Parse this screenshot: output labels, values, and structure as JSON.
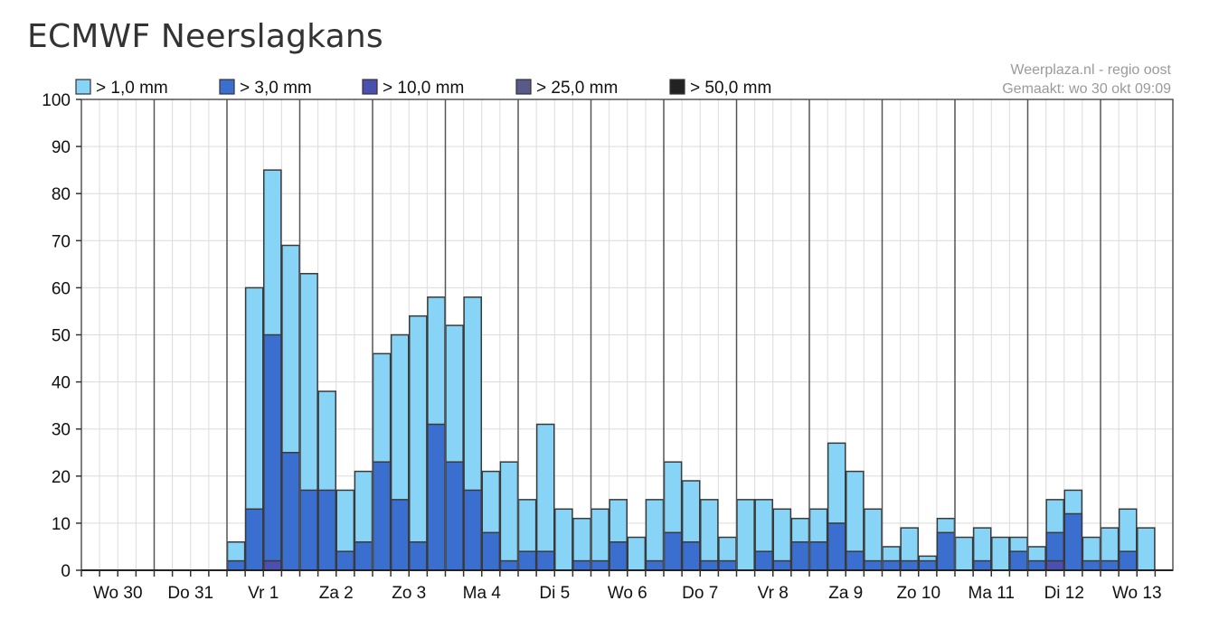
{
  "page": {
    "title": "ECMWF Neerslagkans"
  },
  "credit": {
    "source": "Weerplaza.nl - regio oost",
    "created": "Gemaakt: wo 30 okt 09:09"
  },
  "legend": [
    {
      "label": "> 1,0 mm",
      "color": "#87d4f7"
    },
    {
      "label": "> 3,0 mm",
      "color": "#3a6fd0"
    },
    {
      "label": "> 10,0 mm",
      "color": "#4a4fb0"
    },
    {
      "label": "> 25,0 mm",
      "color": "#5a5a8a"
    },
    {
      "label": "> 50,0 mm",
      "color": "#222222"
    }
  ],
  "chart_data": {
    "type": "bar",
    "stacked_overlay": true,
    "ylim": [
      0,
      100
    ],
    "yticks": [
      0,
      10,
      20,
      30,
      40,
      50,
      60,
      70,
      80,
      90,
      100
    ],
    "days": [
      "Wo 30",
      "Do 31",
      "Vr 1",
      "Za 2",
      "Zo 3",
      "Ma 4",
      "Di 5",
      "Wo 6",
      "Do 7",
      "Vr 8",
      "Za 9",
      "Zo 10",
      "Ma 11",
      "Di 12",
      "Wo 13"
    ],
    "grid": true,
    "legend_position": "top",
    "series": [
      {
        "name": "> 1,0 mm",
        "values": [
          0,
          0,
          0,
          0,
          0,
          0,
          0,
          0,
          6,
          60,
          85,
          69,
          63,
          38,
          17,
          21,
          46,
          50,
          54,
          58,
          52,
          58,
          21,
          23,
          15,
          31,
          13,
          11,
          13,
          15,
          7,
          15,
          23,
          19,
          15,
          7,
          15,
          15,
          13,
          11,
          13,
          27,
          21,
          13,
          5,
          9,
          3,
          11,
          7,
          9,
          7,
          7,
          5,
          15,
          17,
          7,
          9,
          13,
          9
        ]
      },
      {
        "name": "> 3,0 mm",
        "values": [
          0,
          0,
          0,
          0,
          0,
          0,
          0,
          0,
          2,
          13,
          50,
          25,
          17,
          17,
          4,
          6,
          23,
          15,
          6,
          31,
          23,
          17,
          8,
          2,
          4,
          4,
          0,
          2,
          2,
          6,
          0,
          2,
          8,
          6,
          2,
          2,
          0,
          4,
          2,
          6,
          6,
          10,
          4,
          2,
          2,
          2,
          2,
          8,
          0,
          2,
          0,
          4,
          2,
          8,
          12,
          2,
          2,
          4,
          0
        ]
      },
      {
        "name": "> 10,0 mm",
        "values": [
          0,
          0,
          0,
          0,
          0,
          0,
          0,
          0,
          0,
          0,
          2,
          0,
          0,
          0,
          0,
          0,
          0,
          0,
          0,
          0,
          0,
          0,
          0,
          0,
          0,
          0,
          0,
          0,
          0,
          0,
          0,
          0,
          0,
          0,
          0,
          0,
          0,
          0,
          0,
          0,
          0,
          0,
          0,
          0,
          0,
          0,
          0,
          0,
          0,
          0,
          0,
          0,
          0,
          2,
          0,
          0,
          0,
          0,
          0
        ]
      }
    ]
  }
}
